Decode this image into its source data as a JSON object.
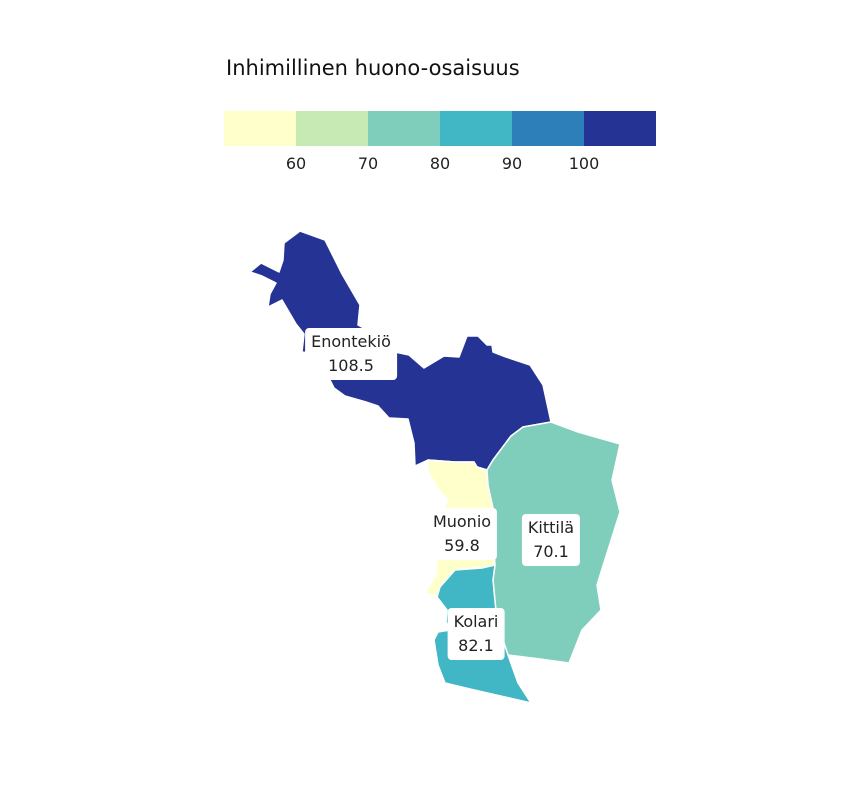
{
  "legend": {
    "title": "Inhimillinen huono-osaisuus",
    "colors": [
      "#ffffcc",
      "#c7e9b4",
      "#7fcdbb",
      "#41b6c4",
      "#2c7fb8",
      "#253494"
    ],
    "ticks": [
      "60",
      "70",
      "80",
      "90",
      "100"
    ]
  },
  "regions": [
    {
      "name": "Enontekiö",
      "value": "108.5",
      "color": "#253494"
    },
    {
      "name": "Muonio",
      "value": "59.8",
      "color": "#ffffcc"
    },
    {
      "name": "Kittilä",
      "value": "70.1",
      "color": "#7fcdbb"
    },
    {
      "name": "Kolari",
      "value": "82.1",
      "color": "#41b6c4"
    }
  ]
}
